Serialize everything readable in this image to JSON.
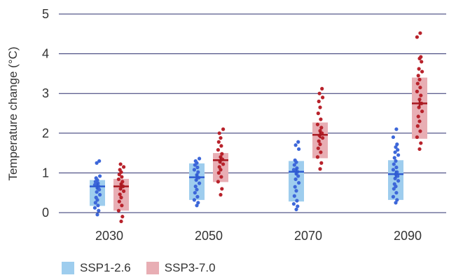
{
  "chart_data": {
    "type": "scatter",
    "ylabel": "Temperature change (°C)",
    "xlabel": "",
    "ylim": [
      0,
      5
    ],
    "yticks": [
      0,
      1,
      2,
      3,
      4,
      5
    ],
    "grid": true,
    "legend_position": "bottom-left",
    "categories": [
      "2030",
      "2050",
      "2070",
      "2090"
    ],
    "series": [
      {
        "name": "SSP1-2.6",
        "box_color": "#9ECDEE",
        "dot_color": "#3D67D9",
        "median_color": "#2E5BD1",
        "boxes": [
          {
            "low": 0.17,
            "high": 0.82,
            "median": 0.66
          },
          {
            "low": 0.32,
            "high": 1.24,
            "median": 0.89
          },
          {
            "low": 0.28,
            "high": 1.3,
            "median": 1.03
          },
          {
            "low": 0.32,
            "high": 1.32,
            "median": 0.97
          }
        ],
        "points": [
          [
            -0.05,
            0.05,
            0.12,
            0.18,
            0.25,
            0.32,
            0.38,
            0.45,
            0.52,
            0.58,
            0.62,
            0.66,
            0.7,
            0.74,
            0.78,
            0.82,
            0.87,
            0.92,
            1.25,
            1.3
          ],
          [
            0.18,
            0.25,
            0.32,
            0.4,
            0.5,
            0.58,
            0.66,
            0.74,
            0.82,
            0.88,
            0.95,
            1.02,
            1.08,
            1.14,
            1.2,
            1.25,
            1.3,
            1.36
          ],
          [
            0.08,
            0.16,
            0.22,
            0.3,
            0.42,
            0.55,
            0.65,
            0.75,
            0.84,
            0.92,
            0.98,
            1.03,
            1.08,
            1.12,
            1.2,
            1.27,
            1.32,
            1.6,
            1.7,
            1.78
          ],
          [
            0.25,
            0.32,
            0.4,
            0.5,
            0.6,
            0.66,
            0.72,
            0.8,
            0.86,
            0.92,
            0.97,
            1.02,
            1.08,
            1.14,
            1.22,
            1.3,
            1.38,
            1.45,
            1.52,
            1.58,
            1.65,
            1.72,
            1.9,
            2.1
          ]
        ]
      },
      {
        "name": "SSP3-7.0",
        "box_color": "#E8AEB4",
        "dot_color": "#B8222B",
        "median_color": "#A81820",
        "boxes": [
          {
            "low": 0.05,
            "high": 0.85,
            "median": 0.66
          },
          {
            "low": 0.77,
            "high": 1.5,
            "median": 1.32
          },
          {
            "low": 1.37,
            "high": 2.27,
            "median": 1.96
          },
          {
            "low": 1.86,
            "high": 3.4,
            "median": 2.75
          }
        ],
        "points": [
          [
            -0.22,
            -0.1,
            0.05,
            0.18,
            0.28,
            0.38,
            0.46,
            0.54,
            0.6,
            0.66,
            0.72,
            0.78,
            0.84,
            0.9,
            0.96,
            1.02,
            1.08,
            1.15,
            1.22
          ],
          [
            0.45,
            0.6,
            0.78,
            0.9,
            1.0,
            1.08,
            1.15,
            1.22,
            1.28,
            1.34,
            1.4,
            1.48,
            1.58,
            1.68,
            1.78,
            1.88,
            2.0,
            2.1
          ],
          [
            1.1,
            1.25,
            1.4,
            1.52,
            1.62,
            1.72,
            1.8,
            1.88,
            1.94,
            2.0,
            2.06,
            2.14,
            2.22,
            2.35,
            2.5,
            2.65,
            2.8,
            2.9,
            3.0,
            3.12
          ],
          [
            1.6,
            1.75,
            1.9,
            2.05,
            2.18,
            2.3,
            2.42,
            2.55,
            2.65,
            2.75,
            2.85,
            2.95,
            3.05,
            3.15,
            3.25,
            3.35,
            3.45,
            3.55,
            3.62,
            3.8,
            3.88,
            3.92,
            4.42,
            4.52
          ]
        ]
      }
    ]
  }
}
